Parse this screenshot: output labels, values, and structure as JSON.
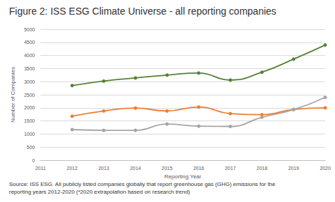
{
  "chart_data": {
    "type": "line",
    "title": "Figure 2: ISS ESG Climate Universe - all reporting companies",
    "source": [
      "Source: ISS ESG. All publicly listed companies globally that report greenhouse gas (GHG) emissions for the",
      "reporting years 2012-2020 (*2020 extrapolation based on research trend)"
    ],
    "x_label": "Reporting Year",
    "y_label": "Number of Companies",
    "x": [
      2012,
      2013,
      2014,
      2015,
      2016,
      2017,
      2018,
      2019,
      2020
    ],
    "series": [
      {
        "color": "#548235",
        "marker": "circle",
        "line_style": "solid",
        "values": [
          2850,
          3020,
          3140,
          3250,
          3330,
          3060,
          3360,
          3860,
          4400
        ]
      },
      {
        "color": "#ed7d31",
        "marker": "circle",
        "line_style": "solid",
        "values": [
          1680,
          1880,
          1990,
          1880,
          2030,
          1780,
          1740,
          1940,
          2000
        ]
      },
      {
        "color": "#a5a5a5",
        "marker": "circle",
        "line_style": "solid",
        "values": [
          1170,
          1140,
          1140,
          1380,
          1300,
          1290,
          1640,
          1930,
          2400
        ]
      }
    ],
    "xlim": [
      2011,
      2020
    ],
    "xticks": [
      2011,
      2012,
      2013,
      2014,
      2015,
      2016,
      2017,
      2018,
      2019,
      2020
    ],
    "ylim": [
      0,
      5000
    ],
    "yticks": [
      0,
      500,
      1000,
      1500,
      2000,
      2500,
      3000,
      3500,
      4000,
      4500,
      5000
    ],
    "grid": true
  }
}
